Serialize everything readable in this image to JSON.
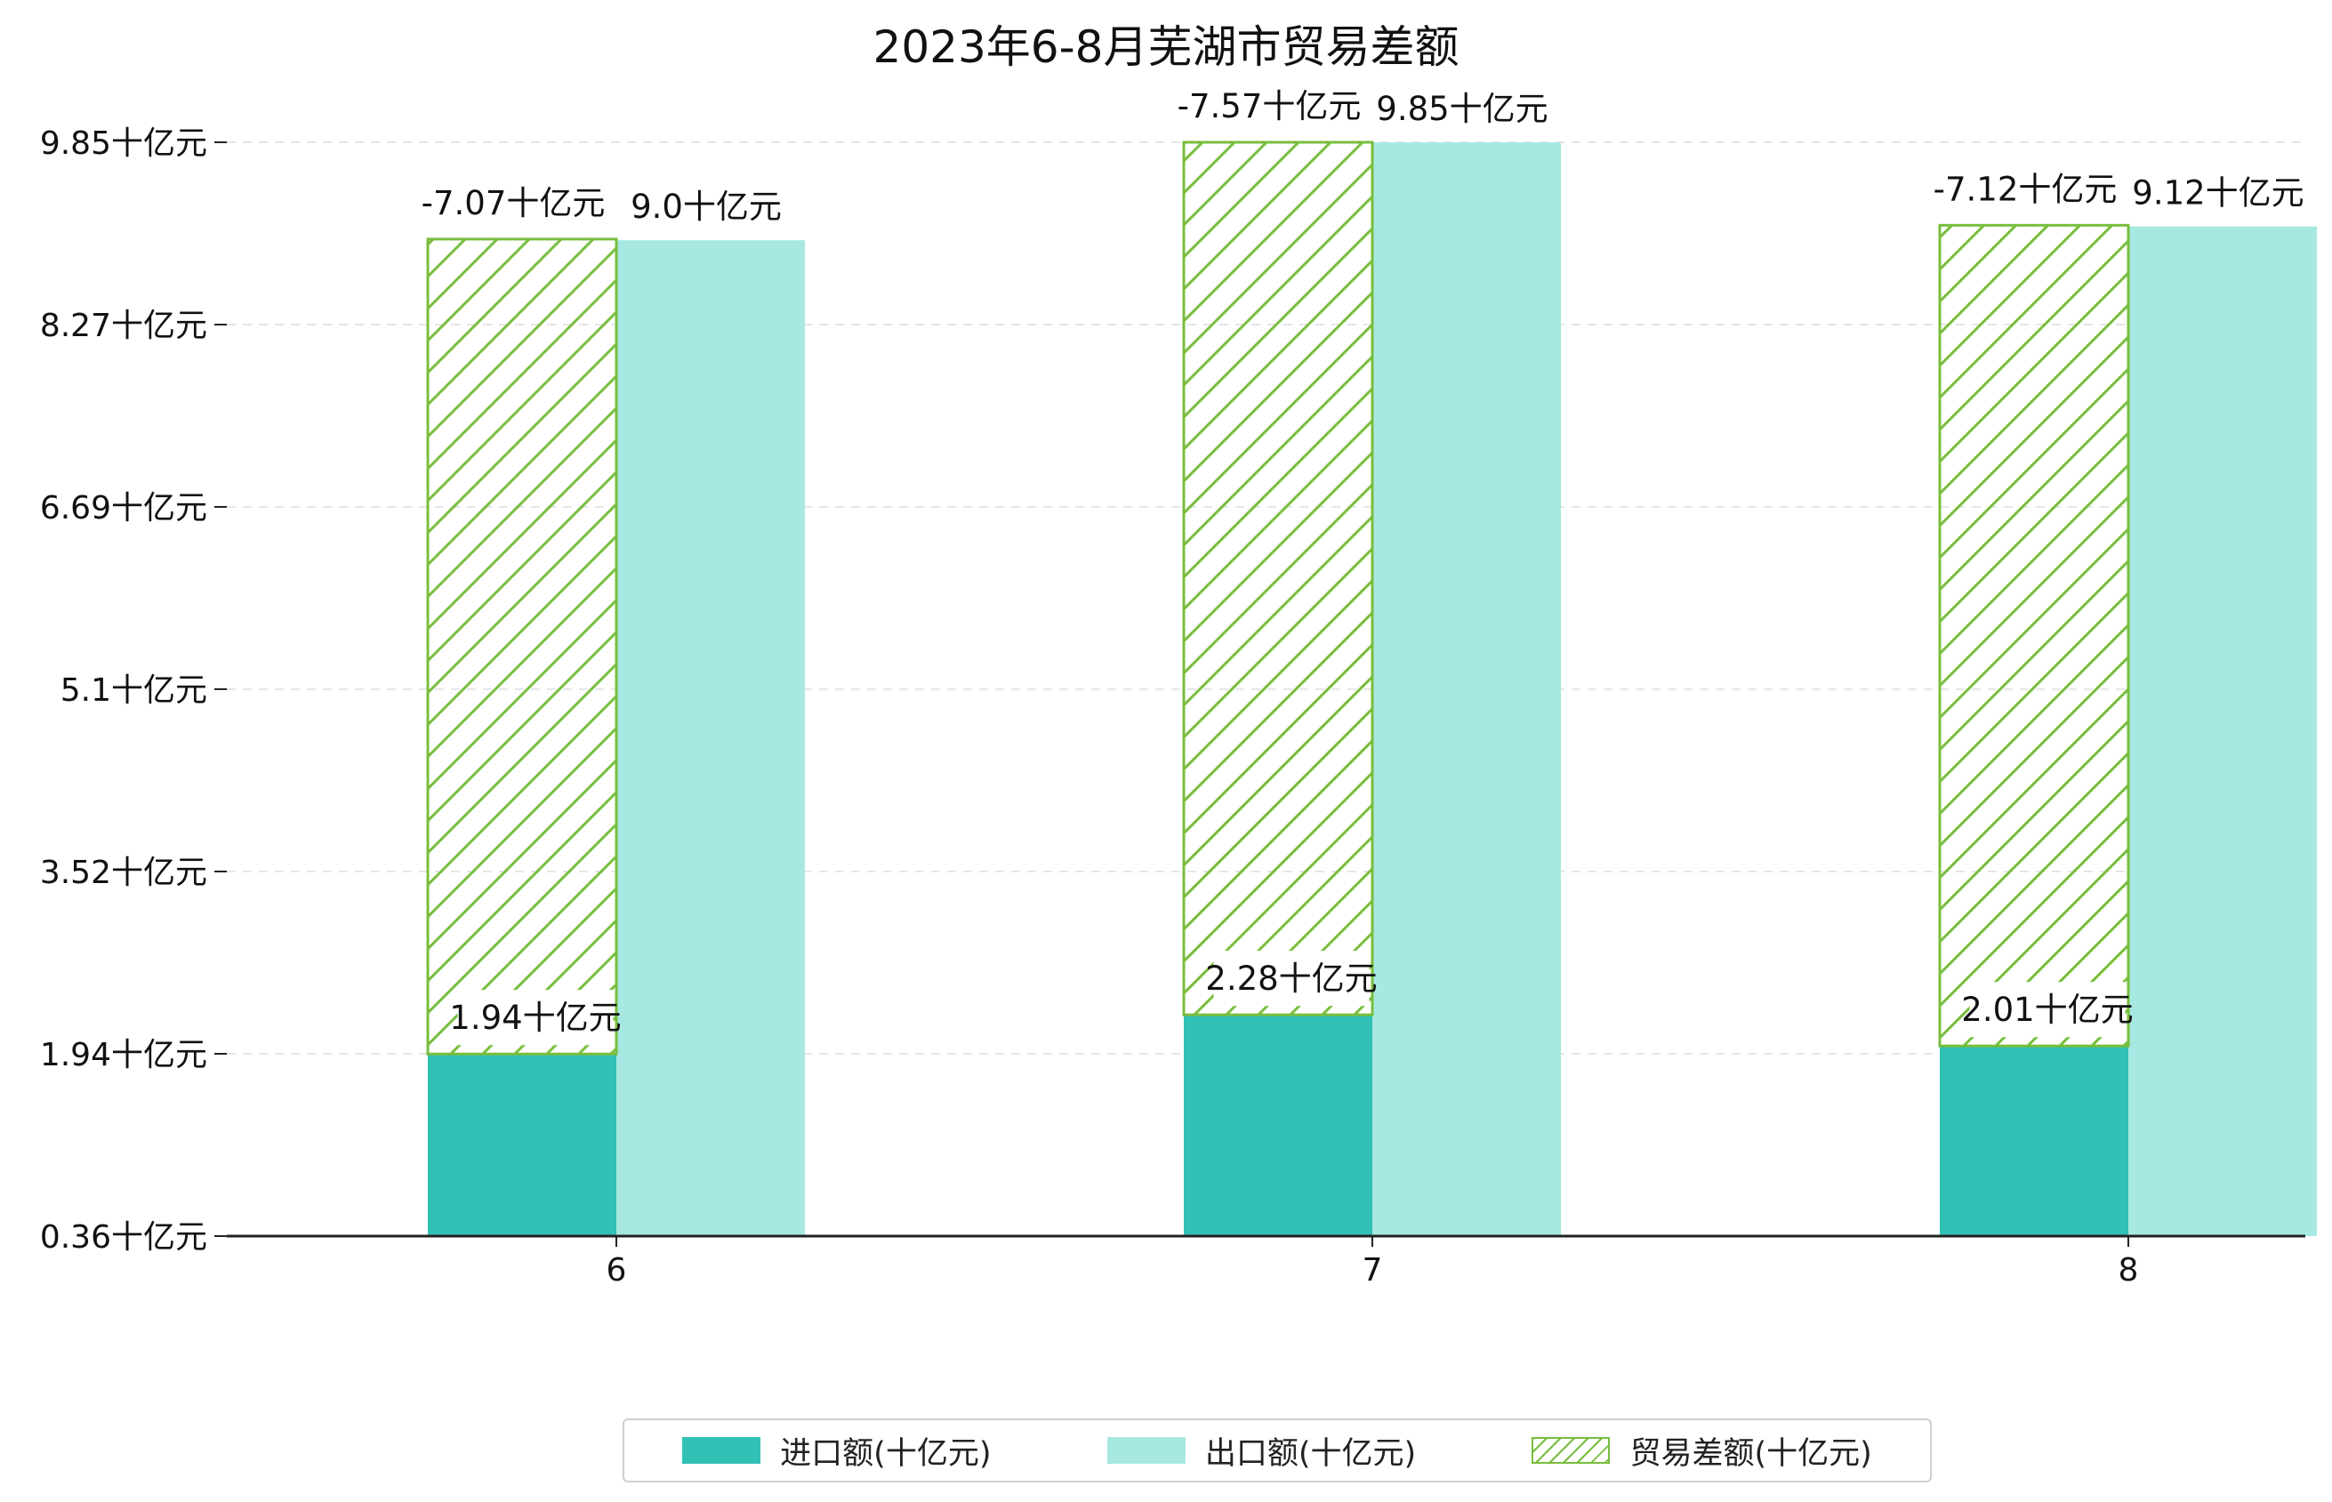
{
  "chart_data": {
    "type": "bar",
    "title": "2023年6-8月芜湖市贸易差额",
    "categories": [
      "6",
      "7",
      "8"
    ],
    "ytick_labels": [
      "0.36十亿元",
      "1.94十亿元",
      "3.52十亿元",
      "5.1十亿元",
      "6.69十亿元",
      "8.27十亿元",
      "9.85十亿元"
    ],
    "ylim": [
      0.36,
      9.85
    ],
    "grid": true,
    "legend_position": "bottom",
    "series": [
      {
        "name": "进口额(十亿元)",
        "color": "#30c0b4",
        "values": [
          1.94,
          2.28,
          2.01
        ],
        "labels": [
          "1.94十亿元",
          "2.28十亿元",
          "2.01十亿元"
        ]
      },
      {
        "name": "出口额(十亿元)",
        "color": "#a8e8e2",
        "values": [
          9.0,
          9.85,
          9.12
        ],
        "labels": [
          "9.0十亿元",
          "9.85十亿元",
          "9.12十亿元"
        ]
      },
      {
        "name": "贸易差额(十亿元)",
        "color": "#78be3c",
        "hatch": "diagonal",
        "values": [
          -7.07,
          -7.57,
          -7.12
        ],
        "labels": [
          "-7.07十亿元",
          "-7.57十亿元",
          "-7.12十亿元"
        ]
      }
    ]
  }
}
